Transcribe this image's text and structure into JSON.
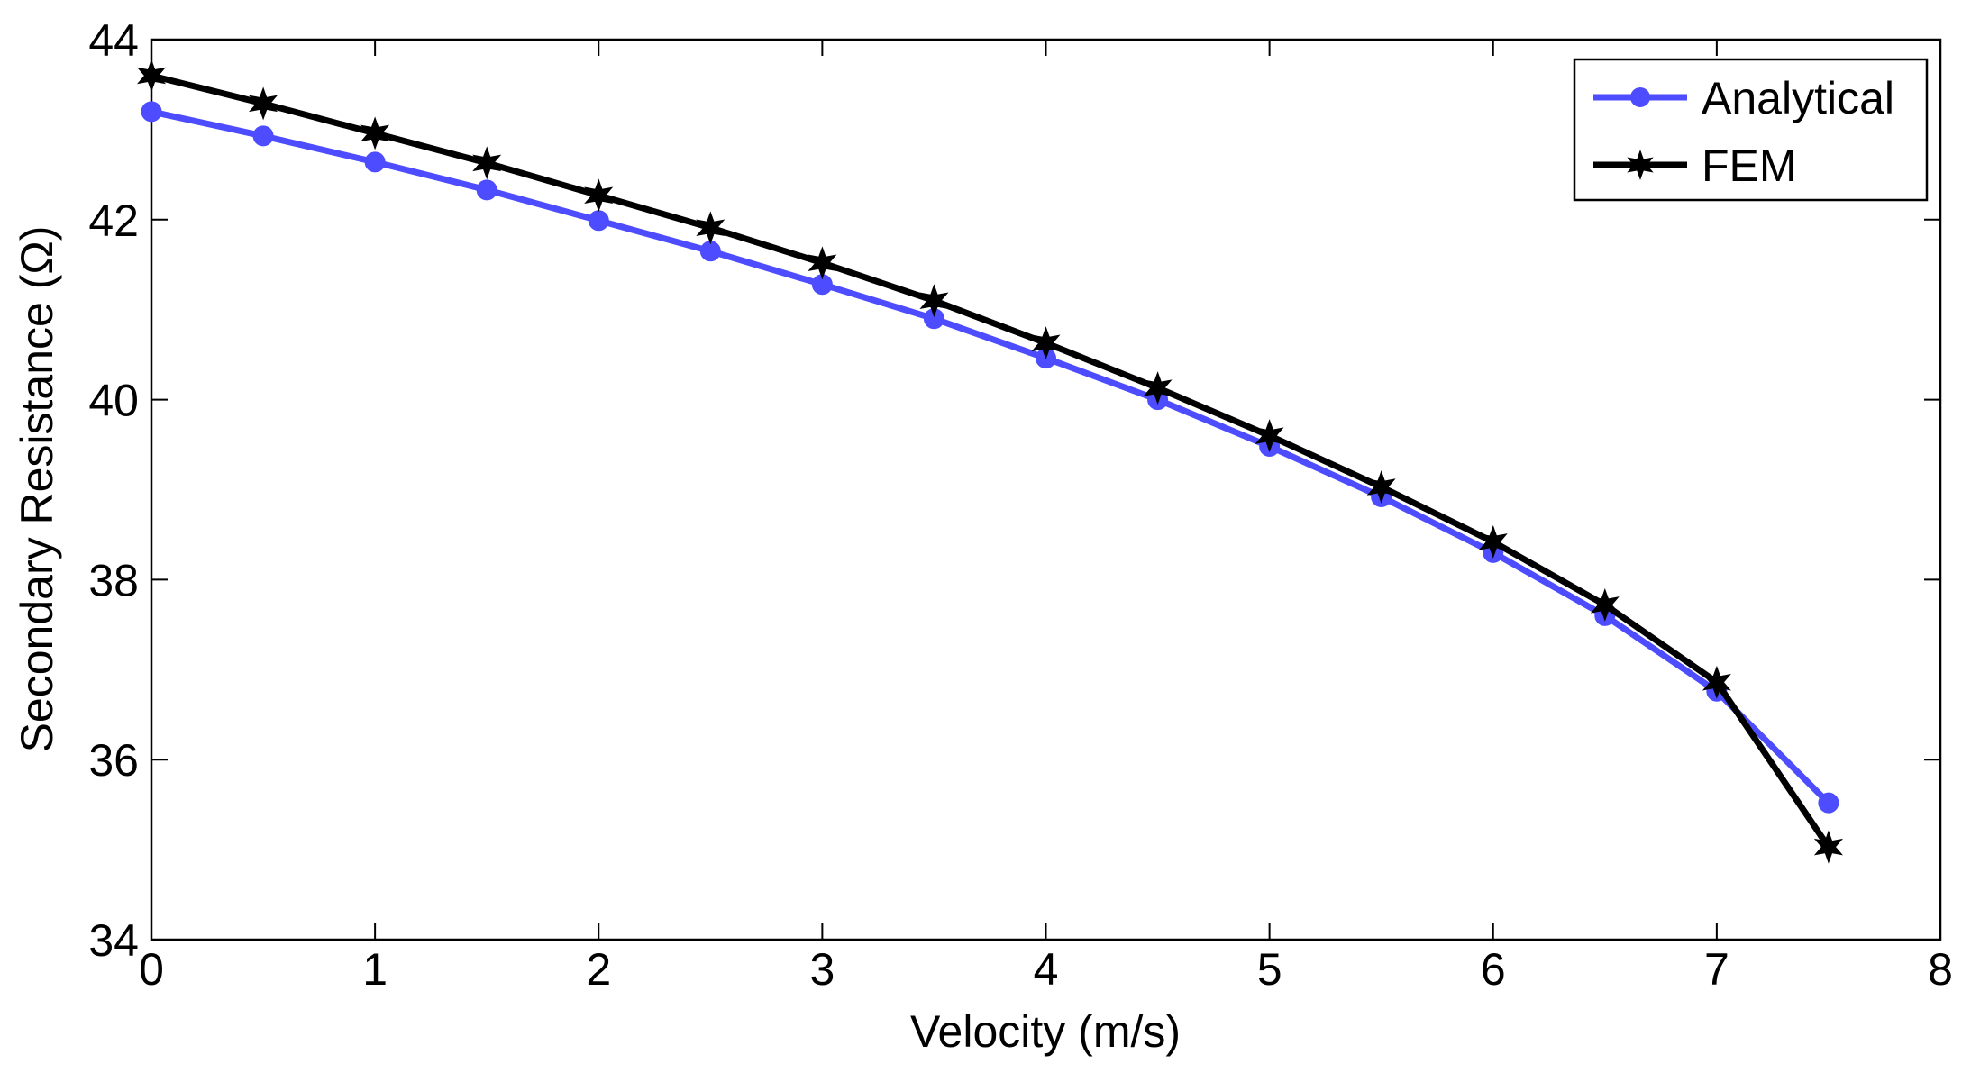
{
  "chart_data": {
    "type": "line",
    "xlabel": "Velocity (m/s)",
    "ylabel": "Secondary Resistance (Ω)",
    "xlim": [
      0,
      8
    ],
    "ylim": [
      34,
      44
    ],
    "xticks": [
      0,
      1,
      2,
      3,
      4,
      5,
      6,
      7,
      8
    ],
    "yticks": [
      34,
      36,
      38,
      40,
      42,
      44
    ],
    "grid": false,
    "legend_position": "top-right",
    "x": [
      0,
      0.5,
      1,
      1.5,
      2,
      2.5,
      3,
      3.5,
      4,
      4.5,
      5,
      5.5,
      6,
      6.5,
      7,
      7.5
    ],
    "series": [
      {
        "name": "Analytical",
        "color": "#4d4dff",
        "marker": "circle",
        "values": [
          43.2,
          42.93,
          42.64,
          42.33,
          41.99,
          41.65,
          41.28,
          40.9,
          40.46,
          40.0,
          39.48,
          38.92,
          38.3,
          37.6,
          36.76,
          35.52
        ]
      },
      {
        "name": "FEM",
        "color": "#000000",
        "marker": "hexagram",
        "values": [
          43.6,
          43.29,
          42.96,
          42.63,
          42.27,
          41.91,
          41.52,
          41.1,
          40.63,
          40.13,
          39.6,
          39.03,
          38.42,
          37.72,
          36.86,
          35.03
        ]
      }
    ]
  }
}
